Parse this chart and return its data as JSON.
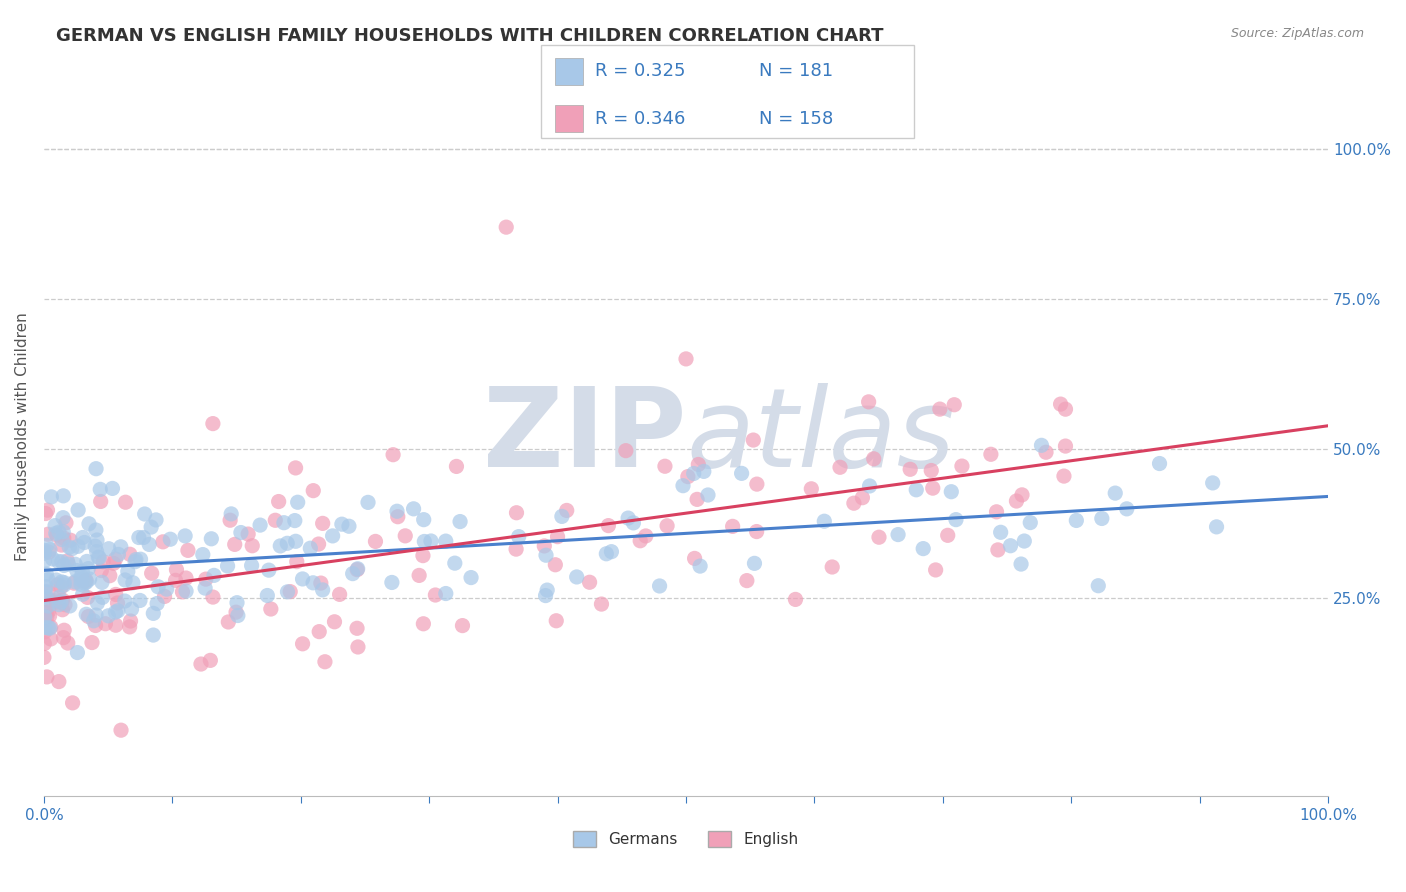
{
  "title": "GERMAN VS ENGLISH FAMILY HOUSEHOLDS WITH CHILDREN CORRELATION CHART",
  "source_text": "Source: ZipAtlas.com",
  "ylabel": "Family Households with Children",
  "xlabel": "",
  "xlim": [
    0.0,
    1.0
  ],
  "ylim": [
    -0.08,
    1.12
  ],
  "german_R": 0.325,
  "german_N": 181,
  "english_R": 0.346,
  "english_N": 158,
  "german_color": "#a8c8e8",
  "english_color": "#f0a0b8",
  "german_line_color": "#4a80cc",
  "english_line_color": "#d84060",
  "background_color": "#ffffff",
  "watermark_color": "#d4dce8",
  "right_ytick_labels": [
    "25.0%",
    "50.0%",
    "75.0%",
    "100.0%"
  ],
  "right_ytick_values": [
    0.25,
    0.5,
    0.75,
    1.0
  ],
  "xtick_labels": [
    "0.0%",
    "",
    "",
    "",
    "",
    "",
    "",
    "",
    "",
    "",
    "100.0%"
  ],
  "xtick_values": [
    0.0,
    0.1,
    0.2,
    0.3,
    0.4,
    0.5,
    0.6,
    0.7,
    0.8,
    0.9,
    1.0
  ],
  "title_fontsize": 13,
  "axis_label_fontsize": 11,
  "tick_fontsize": 11,
  "legend_fontsize": 13,
  "blue_text_color": "#3a7abf"
}
